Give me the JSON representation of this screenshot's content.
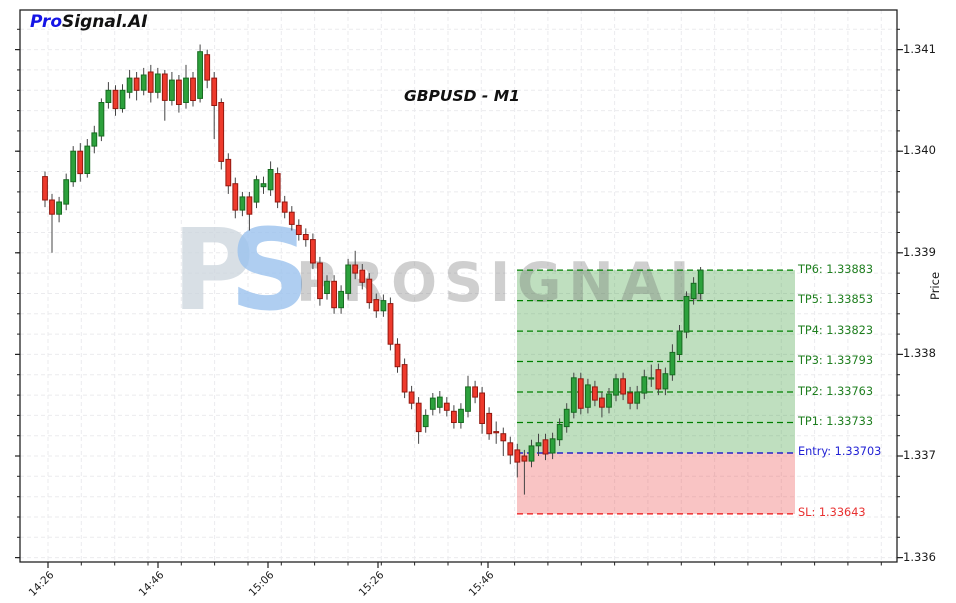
{
  "brand": {
    "pro": "Pro",
    "suffix": "Signal.AI"
  },
  "watermark": {
    "logo_p": "P",
    "logo_s": "S",
    "text": "PROSIGNAL"
  },
  "chart_data": {
    "type": "candlestick",
    "title": "GBPUSD - M1",
    "symbol": "GBPUSD",
    "timeframe": "M1",
    "ylabel": "Price",
    "x_tick_labels": [
      "14:26",
      "14:46",
      "15:06",
      "15:26",
      "15:46"
    ],
    "y_tick_labels": [
      "1.341",
      "1.340",
      "1.339",
      "1.338",
      "1.337",
      "1.336"
    ],
    "y_view": [
      1.33596,
      1.34139
    ],
    "grid": true,
    "levels": [
      {
        "id": "tp6",
        "label": "TP6: 1.33883",
        "price": 1.33883,
        "type": "tp"
      },
      {
        "id": "tp5",
        "label": "TP5: 1.33853",
        "price": 1.33853,
        "type": "tp"
      },
      {
        "id": "tp4",
        "label": "TP4: 1.33823",
        "price": 1.33823,
        "type": "tp"
      },
      {
        "id": "tp3",
        "label": "TP3: 1.33793",
        "price": 1.33793,
        "type": "tp"
      },
      {
        "id": "tp2",
        "label": "TP2: 1.33763",
        "price": 1.33763,
        "type": "tp"
      },
      {
        "id": "tp1",
        "label": "TP1: 1.33733",
        "price": 1.33733,
        "type": "tp"
      },
      {
        "id": "entry",
        "label": "Entry: 1.33703",
        "price": 1.33703,
        "type": "entry"
      },
      {
        "id": "sl",
        "label": "SL: 1.33643",
        "price": 1.33643,
        "type": "sl"
      }
    ],
    "zones": [
      {
        "id": "tp-zone",
        "top_price": 1.33883,
        "bottom_price": 1.33703,
        "color": "rgba(44,150,44,0.30)"
      },
      {
        "id": "sl-zone",
        "top_price": 1.33703,
        "bottom_price": 1.33643,
        "color": "rgba(235,70,70,0.32)"
      }
    ],
    "colors": {
      "candle_up_fill": "#2ca13c",
      "candle_up_edge": "#176b20",
      "candle_down_fill": "#ee3a2c",
      "candle_down_edge": "#93180f",
      "wick": "#444444",
      "tp_line": "#008000",
      "entry_line": "#0000cc",
      "sl_line": "#ee1111",
      "tp_label": "#1e7e1e",
      "entry_label": "#1f1fd4",
      "sl_label": "#e83030",
      "grid_line": "#ebebee",
      "axis": "#222222"
    },
    "candles": [
      [
        1.33975,
        1.3398,
        1.33945,
        1.33952
      ],
      [
        1.33952,
        1.33958,
        1.339,
        1.33938
      ],
      [
        1.33938,
        1.33955,
        1.3393,
        1.3395
      ],
      [
        1.33948,
        1.33978,
        1.33942,
        1.33972
      ],
      [
        1.3397,
        1.34005,
        1.33965,
        1.34
      ],
      [
        1.34,
        1.34008,
        1.3397,
        1.33978
      ],
      [
        1.33978,
        1.34012,
        1.33974,
        1.34005
      ],
      [
        1.34005,
        1.34025,
        1.33998,
        1.34018
      ],
      [
        1.34015,
        1.34052,
        1.3401,
        1.34048
      ],
      [
        1.34048,
        1.34068,
        1.34042,
        1.3406
      ],
      [
        1.3406,
        1.34065,
        1.34035,
        1.34042
      ],
      [
        1.34042,
        1.34066,
        1.34038,
        1.3406
      ],
      [
        1.34058,
        1.3408,
        1.34052,
        1.34072
      ],
      [
        1.34072,
        1.34078,
        1.3405,
        1.3406
      ],
      [
        1.3406,
        1.34082,
        1.34055,
        1.34075
      ],
      [
        1.34078,
        1.34085,
        1.34048,
        1.34058
      ],
      [
        1.34058,
        1.34082,
        1.34052,
        1.34076
      ],
      [
        1.34076,
        1.3408,
        1.3403,
        1.3405
      ],
      [
        1.3405,
        1.34078,
        1.34045,
        1.3407
      ],
      [
        1.3407,
        1.34075,
        1.34038,
        1.34046
      ],
      [
        1.34048,
        1.34085,
        1.34042,
        1.34072
      ],
      [
        1.34072,
        1.34078,
        1.34044,
        1.3405
      ],
      [
        1.34052,
        1.34105,
        1.34048,
        1.34098
      ],
      [
        1.34095,
        1.341,
        1.34062,
        1.3407
      ],
      [
        1.34072,
        1.34078,
        1.34012,
        1.34045
      ],
      [
        1.34048,
        1.34052,
        1.33982,
        1.3399
      ],
      [
        1.33992,
        1.33998,
        1.33958,
        1.33966
      ],
      [
        1.33968,
        1.33974,
        1.33934,
        1.33942
      ],
      [
        1.33942,
        1.3396,
        1.33936,
        1.33955
      ],
      [
        1.33955,
        1.3396,
        1.33922,
        1.33938
      ],
      [
        1.3395,
        1.33976,
        1.33944,
        1.33972
      ],
      [
        1.33965,
        1.33975,
        1.33958,
        1.33968
      ],
      [
        1.33962,
        1.3399,
        1.33956,
        1.33982
      ],
      [
        1.33978,
        1.33984,
        1.33944,
        1.3395
      ],
      [
        1.3395,
        1.33956,
        1.33934,
        1.3394
      ],
      [
        1.3394,
        1.33946,
        1.33922,
        1.33928
      ],
      [
        1.33927,
        1.33933,
        1.33912,
        1.33918
      ],
      [
        1.33918,
        1.33924,
        1.33906,
        1.33913
      ],
      [
        1.33913,
        1.33919,
        1.33884,
        1.3389
      ],
      [
        1.3389,
        1.33896,
        1.33848,
        1.33855
      ],
      [
        1.3386,
        1.33878,
        1.33854,
        1.33872
      ],
      [
        1.33872,
        1.33878,
        1.3384,
        1.33846
      ],
      [
        1.33846,
        1.33868,
        1.3384,
        1.33862
      ],
      [
        1.3386,
        1.33894,
        1.33854,
        1.33888
      ],
      [
        1.33888,
        1.33902,
        1.33874,
        1.3388
      ],
      [
        1.33883,
        1.33889,
        1.33864,
        1.33871
      ],
      [
        1.33874,
        1.3388,
        1.33845,
        1.33851
      ],
      [
        1.33854,
        1.3386,
        1.33836,
        1.33843
      ],
      [
        1.33843,
        1.33859,
        1.33837,
        1.33853
      ],
      [
        1.3385,
        1.33856,
        1.33804,
        1.3381
      ],
      [
        1.3381,
        1.33816,
        1.33782,
        1.33788
      ],
      [
        1.3379,
        1.33796,
        1.33757,
        1.33763
      ],
      [
        1.33763,
        1.33769,
        1.33746,
        1.33752
      ],
      [
        1.33752,
        1.33758,
        1.33712,
        1.33724
      ],
      [
        1.33729,
        1.33746,
        1.33723,
        1.3374
      ],
      [
        1.33746,
        1.33762,
        1.3374,
        1.33757
      ],
      [
        1.33748,
        1.33764,
        1.33742,
        1.33758
      ],
      [
        1.33752,
        1.33758,
        1.33739,
        1.33745
      ],
      [
        1.33744,
        1.3375,
        1.33727,
        1.33733
      ],
      [
        1.33733,
        1.33752,
        1.33727,
        1.33746
      ],
      [
        1.33744,
        1.33779,
        1.33738,
        1.33768
      ],
      [
        1.33768,
        1.33774,
        1.33752,
        1.33758
      ],
      [
        1.33762,
        1.33768,
        1.33722,
        1.33732
      ],
      [
        1.33742,
        1.33748,
        1.33716,
        1.33722
      ],
      [
        1.33724,
        1.33734,
        1.33712,
        1.33723
      ],
      [
        1.33722,
        1.33728,
        1.337,
        1.33715
      ],
      [
        1.33713,
        1.33719,
        1.33692,
        1.33701
      ],
      [
        1.33706,
        1.33712,
        1.33679,
        1.33694
      ],
      [
        1.337,
        1.33706,
        1.33662,
        1.33695
      ],
      [
        1.33695,
        1.33716,
        1.33689,
        1.3371
      ],
      [
        1.3371,
        1.33722,
        1.337,
        1.33713
      ],
      [
        1.33716,
        1.33722,
        1.33696,
        1.33702
      ],
      [
        1.33703,
        1.33723,
        1.33697,
        1.33717
      ],
      [
        1.33716,
        1.33737,
        1.3371,
        1.33731
      ],
      [
        1.33729,
        1.33752,
        1.33723,
        1.33746
      ],
      [
        1.33743,
        1.33782,
        1.33737,
        1.33777
      ],
      [
        1.33776,
        1.33782,
        1.33741,
        1.33747
      ],
      [
        1.33748,
        1.33776,
        1.33742,
        1.3377
      ],
      [
        1.33768,
        1.33774,
        1.33749,
        1.33755
      ],
      [
        1.33757,
        1.33763,
        1.33738,
        1.33748
      ],
      [
        1.33748,
        1.33767,
        1.33742,
        1.33761
      ],
      [
        1.3376,
        1.33781,
        1.33754,
        1.33776
      ],
      [
        1.33776,
        1.33782,
        1.33755,
        1.33761
      ],
      [
        1.33762,
        1.33768,
        1.33746,
        1.33752
      ],
      [
        1.33752,
        1.33769,
        1.33746,
        1.33763
      ],
      [
        1.33762,
        1.33785,
        1.33756,
        1.33778
      ],
      [
        1.33776,
        1.3379,
        1.33768,
        1.33777
      ],
      [
        1.33785,
        1.33791,
        1.3376,
        1.33766
      ],
      [
        1.33766,
        1.33787,
        1.3376,
        1.33781
      ],
      [
        1.3378,
        1.3381,
        1.33774,
        1.33802
      ],
      [
        1.338,
        1.33829,
        1.33794,
        1.33823
      ],
      [
        1.33822,
        1.33862,
        1.33816,
        1.33857
      ],
      [
        1.33855,
        1.33876,
        1.33849,
        1.3387
      ],
      [
        1.3386,
        1.33886,
        1.33854,
        1.33883
      ]
    ]
  }
}
